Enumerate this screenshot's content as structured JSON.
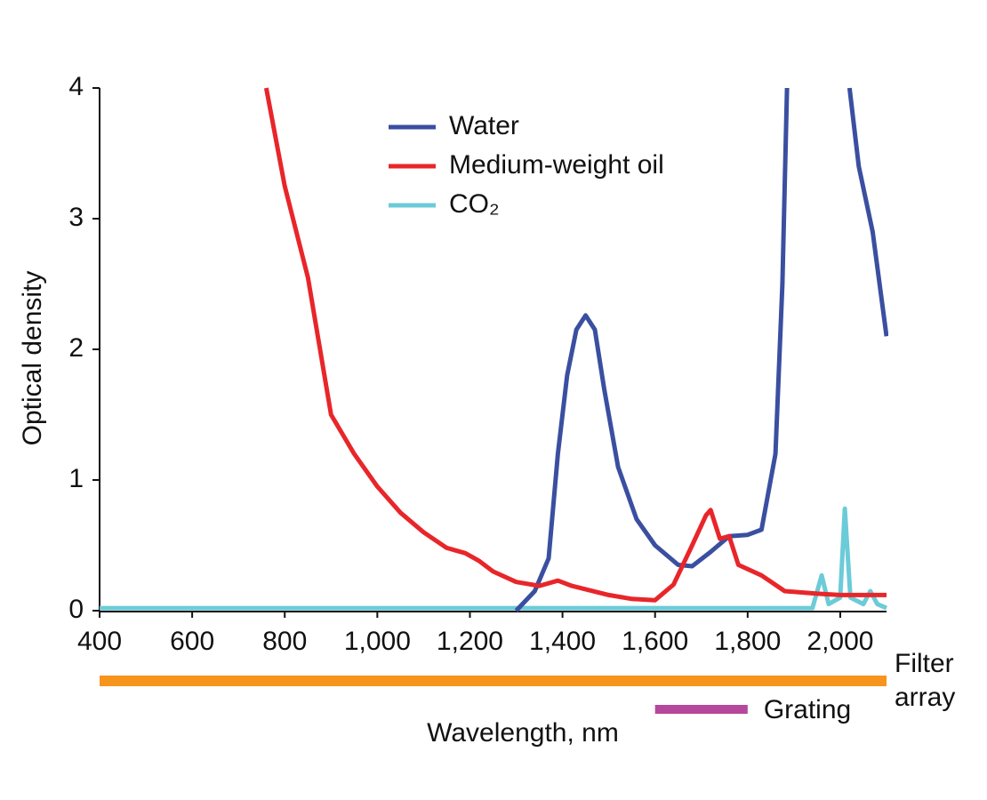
{
  "chart_data": {
    "type": "line",
    "ylabel": "Optical density",
    "xlabel": "Wavelength, nm",
    "xlim": [
      400,
      2100
    ],
    "ylim": [
      0,
      4
    ],
    "xticks": [
      400,
      600,
      800,
      {
        "value": 1000,
        "label": "1,000"
      },
      {
        "value": 1200,
        "label": "1,200"
      },
      {
        "value": 1400,
        "label": "1,400"
      },
      {
        "value": 1600,
        "label": "1,600"
      },
      {
        "value": 1800,
        "label": "1,800"
      },
      {
        "value": 2000,
        "label": "2,000"
      }
    ],
    "yticks": [
      0,
      1,
      2,
      3,
      4
    ],
    "grid": false,
    "legend": "top",
    "series": [
      {
        "name": "Water",
        "color": "#3a4fa0",
        "x": [
          1300,
          1340,
          1370,
          1390,
          1410,
          1430,
          1450,
          1470,
          1490,
          1520,
          1560,
          1600,
          1650,
          1680,
          1720,
          1760,
          1800,
          1830,
          1860,
          1875,
          1885,
          1920,
          2020,
          2040,
          2070,
          2100
        ],
        "values": [
          0,
          0.15,
          0.4,
          1.2,
          1.8,
          2.15,
          2.26,
          2.15,
          1.7,
          1.1,
          0.7,
          0.5,
          0.35,
          0.34,
          0.45,
          0.57,
          0.58,
          0.62,
          1.2,
          2.5,
          4,
          null,
          4,
          3.4,
          2.9,
          2.1
        ]
      },
      {
        "name": "Medium-weight oil",
        "color": "#e8262a",
        "x": [
          760,
          800,
          850,
          900,
          950,
          1000,
          1050,
          1100,
          1150,
          1190,
          1220,
          1250,
          1300,
          1350,
          1390,
          1420,
          1500,
          1550,
          1600,
          1640,
          1680,
          1710,
          1720,
          1740,
          1760,
          1780,
          1830,
          1880,
          1950,
          2000,
          2100
        ],
        "values": [
          4,
          3.25,
          2.55,
          1.5,
          1.2,
          0.95,
          0.75,
          0.6,
          0.48,
          0.44,
          0.38,
          0.3,
          0.22,
          0.19,
          0.23,
          0.19,
          0.12,
          0.09,
          0.08,
          0.2,
          0.5,
          0.73,
          0.77,
          0.55,
          0.57,
          0.35,
          0.27,
          0.15,
          0.13,
          0.12,
          0.12
        ]
      },
      {
        "name": "CO₂",
        "color": "#6ccbd8",
        "x": [
          400,
          1940,
          1960,
          1975,
          2000,
          2010,
          2022,
          2050,
          2065,
          2080,
          2100
        ],
        "values": [
          0.02,
          0.02,
          0.27,
          0.05,
          0.1,
          0.78,
          0.1,
          0.05,
          0.15,
          0.05,
          0.02
        ]
      }
    ],
    "ranges": [
      {
        "name": "Filter array",
        "color": "#f7941d",
        "start": 400,
        "end": 2100
      },
      {
        "name": "Grating",
        "color": "#b5489a",
        "start": 1600,
        "end": 1800
      }
    ]
  }
}
